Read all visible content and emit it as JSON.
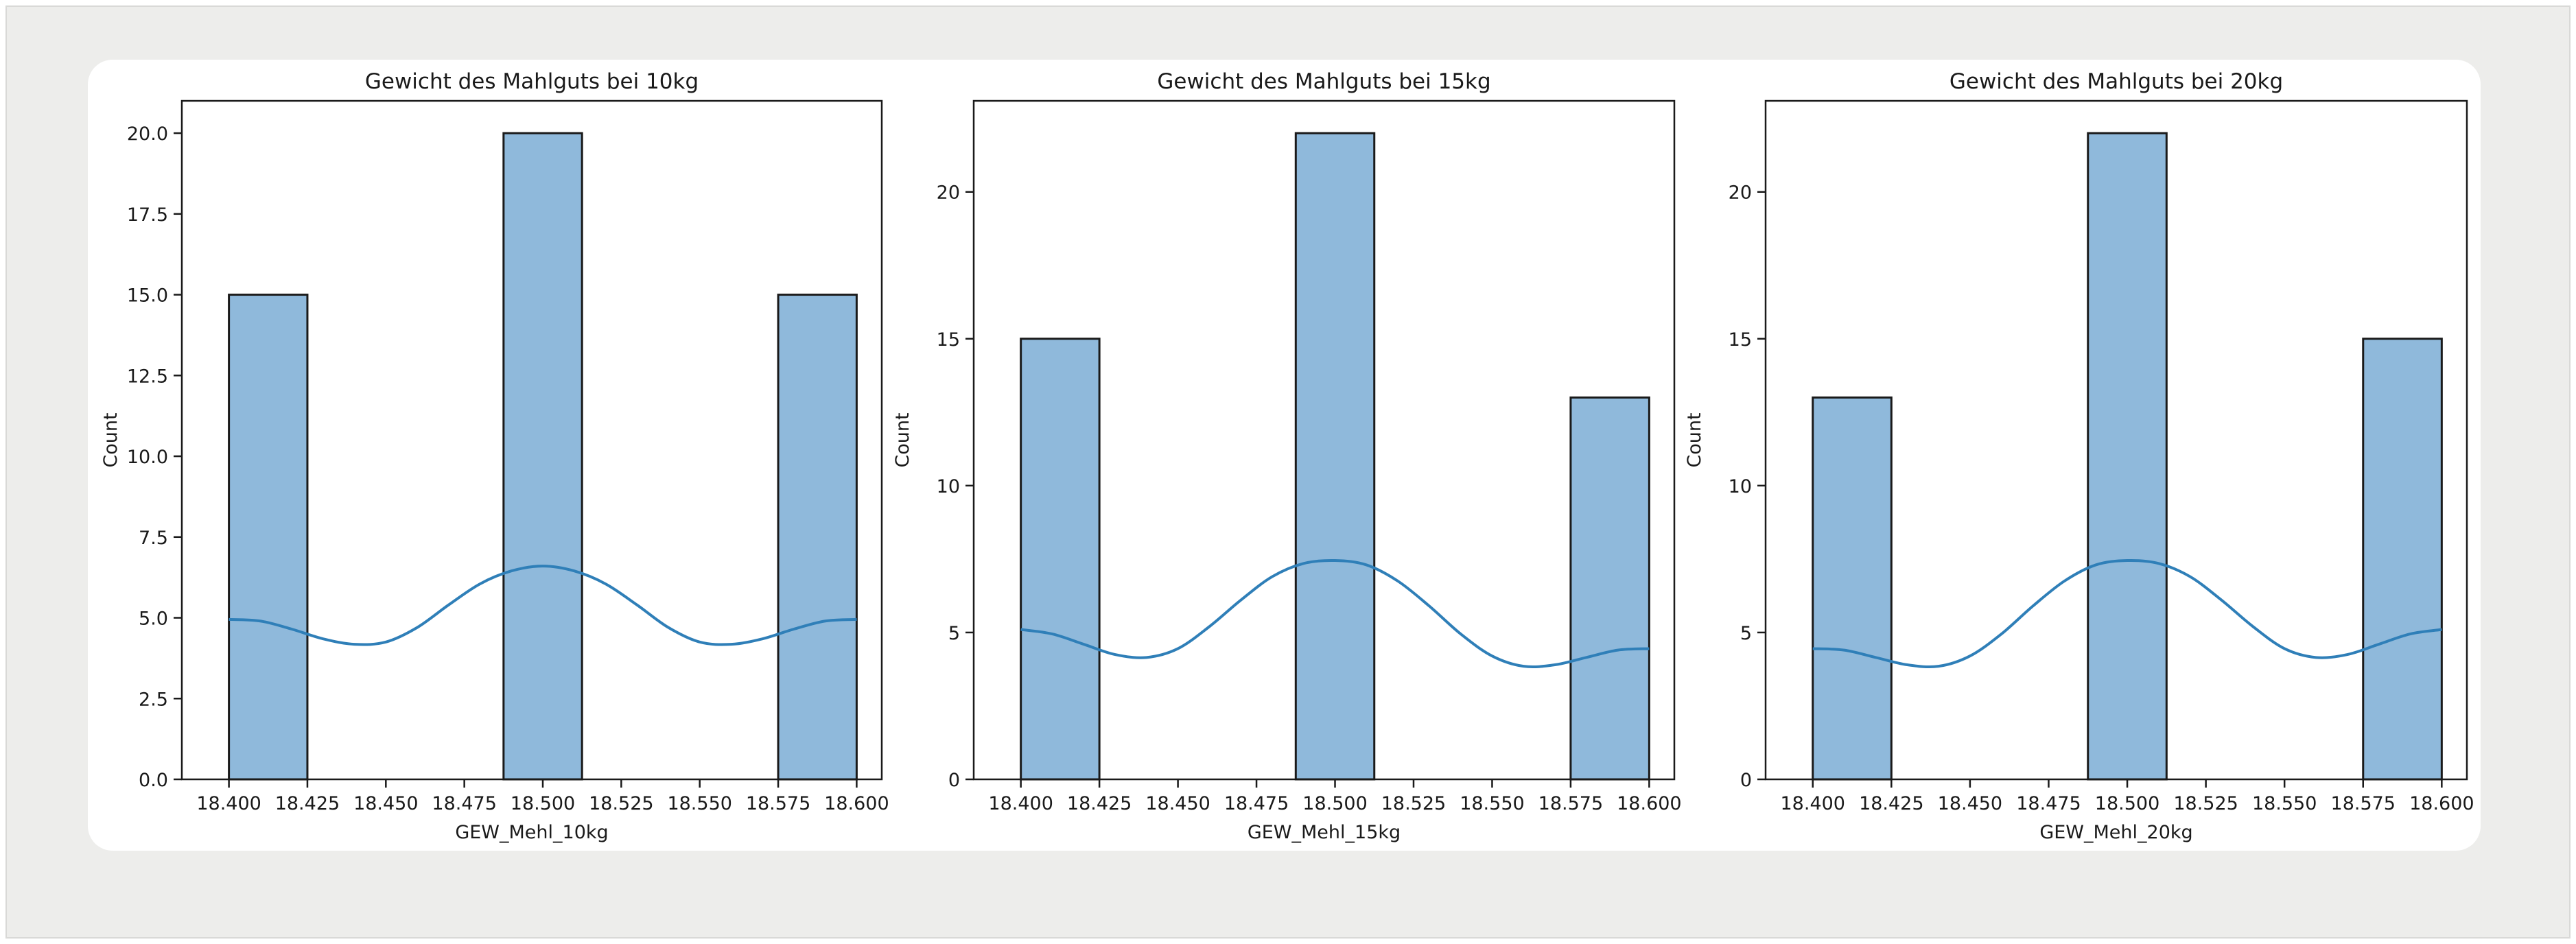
{
  "colors": {
    "bar_fill": "#8fb9db",
    "bar_edge": "#1a1a1a",
    "kde_line": "#2f7fb8",
    "frame_bg": "#ededeb",
    "card_bg": "#ffffff"
  },
  "chart_data": [
    {
      "type": "bar",
      "title": "Gewicht des Mahlguts bei 10kg",
      "xlabel": "GEW_Mehl_10kg",
      "ylabel": "Count",
      "xlim": [
        18.385,
        18.608
      ],
      "ylim": [
        0,
        21
      ],
      "x_ticks": [
        "18.400",
        "18.425",
        "18.450",
        "18.475",
        "18.500",
        "18.525",
        "18.550",
        "18.575",
        "18.600"
      ],
      "y_ticks": [
        "0.0",
        "2.5",
        "5.0",
        "7.5",
        "10.0",
        "12.5",
        "15.0",
        "17.5",
        "20.0"
      ],
      "bin_width": 0.025,
      "bins": [
        {
          "start": 18.4,
          "end": 18.425,
          "count": 15
        },
        {
          "start": 18.4875,
          "end": 18.5125,
          "count": 20
        },
        {
          "start": 18.575,
          "end": 18.6,
          "count": 15
        }
      ],
      "kde": {
        "x": [
          18.4,
          18.41,
          18.42,
          18.43,
          18.44,
          18.45,
          18.46,
          18.47,
          18.48,
          18.49,
          18.5,
          18.51,
          18.52,
          18.53,
          18.54,
          18.55,
          18.56,
          18.57,
          18.58,
          18.59,
          18.6
        ],
        "y": [
          4.95,
          4.9,
          4.65,
          4.35,
          4.18,
          4.25,
          4.7,
          5.4,
          6.05,
          6.45,
          6.6,
          6.45,
          6.05,
          5.4,
          4.7,
          4.25,
          4.18,
          4.35,
          4.65,
          4.9,
          4.95
        ]
      },
      "grid": false
    },
    {
      "type": "bar",
      "title": "Gewicht des Mahlguts bei 15kg",
      "xlabel": "GEW_Mehl_15kg",
      "ylabel": "Count",
      "xlim": [
        18.385,
        18.608
      ],
      "ylim": [
        0,
        23.1
      ],
      "x_ticks": [
        "18.400",
        "18.425",
        "18.450",
        "18.475",
        "18.500",
        "18.525",
        "18.550",
        "18.575",
        "18.600"
      ],
      "y_ticks": [
        "0",
        "5",
        "10",
        "15",
        "20"
      ],
      "bin_width": 0.025,
      "bins": [
        {
          "start": 18.4,
          "end": 18.425,
          "count": 15
        },
        {
          "start": 18.4875,
          "end": 18.5125,
          "count": 22
        },
        {
          "start": 18.575,
          "end": 18.6,
          "count": 13
        }
      ],
      "kde": {
        "x": [
          18.4,
          18.41,
          18.42,
          18.43,
          18.44,
          18.45,
          18.46,
          18.47,
          18.48,
          18.49,
          18.5,
          18.51,
          18.52,
          18.53,
          18.54,
          18.55,
          18.56,
          18.57,
          18.58,
          18.59,
          18.6
        ],
        "y": [
          5.1,
          4.95,
          4.6,
          4.25,
          4.15,
          4.45,
          5.2,
          6.1,
          6.9,
          7.35,
          7.45,
          7.3,
          6.75,
          5.9,
          4.95,
          4.2,
          3.85,
          3.9,
          4.15,
          4.4,
          4.45
        ]
      },
      "grid": false
    },
    {
      "type": "bar",
      "title": "Gewicht des Mahlguts bei 20kg",
      "xlabel": "GEW_Mehl_20kg",
      "ylabel": "Count",
      "xlim": [
        18.385,
        18.608
      ],
      "ylim": [
        0,
        23.1
      ],
      "x_ticks": [
        "18.400",
        "18.425",
        "18.450",
        "18.475",
        "18.500",
        "18.525",
        "18.550",
        "18.575",
        "18.600"
      ],
      "y_ticks": [
        "0",
        "5",
        "10",
        "15",
        "20"
      ],
      "bin_width": 0.025,
      "bins": [
        {
          "start": 18.4,
          "end": 18.425,
          "count": 13
        },
        {
          "start": 18.4875,
          "end": 18.5125,
          "count": 22
        },
        {
          "start": 18.575,
          "end": 18.6,
          "count": 15
        }
      ],
      "kde": {
        "x": [
          18.4,
          18.41,
          18.42,
          18.43,
          18.44,
          18.45,
          18.46,
          18.47,
          18.48,
          18.49,
          18.5,
          18.51,
          18.52,
          18.53,
          18.54,
          18.55,
          18.56,
          18.57,
          18.58,
          18.59,
          18.6
        ],
        "y": [
          4.45,
          4.4,
          4.15,
          3.9,
          3.85,
          4.2,
          4.95,
          5.9,
          6.75,
          7.3,
          7.45,
          7.35,
          6.9,
          6.1,
          5.2,
          4.45,
          4.15,
          4.25,
          4.6,
          4.95,
          5.1
        ]
      },
      "grid": false
    }
  ]
}
